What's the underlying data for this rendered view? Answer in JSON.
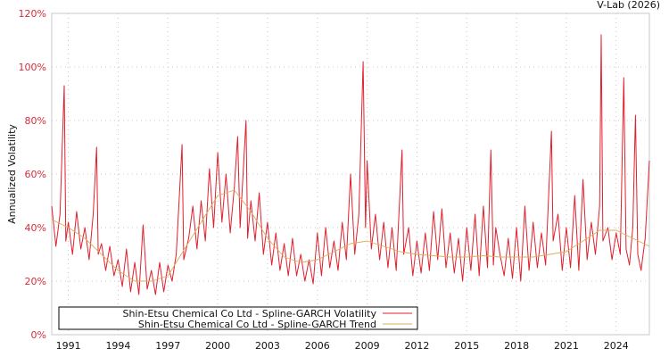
{
  "chart_data": {
    "type": "line",
    "source_label": "V-Lab (2026)",
    "ylabel": "Annualized Volatility",
    "xlabel": "",
    "ylim": [
      0,
      120
    ],
    "xlim": [
      1990.0,
      2026.0
    ],
    "grid": true,
    "legend_position": "bottom-left",
    "y_ticks": [
      "0%",
      "20%",
      "40%",
      "60%",
      "80%",
      "100%",
      "120%"
    ],
    "y_tick_values": [
      0,
      20,
      40,
      60,
      80,
      100,
      120
    ],
    "x_ticks": [
      "1991",
      "1994",
      "1997",
      "2000",
      "2003",
      "2006",
      "2009",
      "2012",
      "2015",
      "2018",
      "2021",
      "2024"
    ],
    "x_tick_values": [
      1991,
      1994,
      1997,
      2000,
      2003,
      2006,
      2009,
      2012,
      2015,
      2018,
      2021,
      2024
    ],
    "series": [
      {
        "name": "Shin-Etsu Chemical Co Ltd - Spline-GARCH Volatility",
        "color": "#e0202e",
        "points": [
          [
            1990.0,
            48
          ],
          [
            1990.25,
            33
          ],
          [
            1990.5,
            45
          ],
          [
            1990.75,
            93
          ],
          [
            1990.85,
            35
          ],
          [
            1991.0,
            42
          ],
          [
            1991.25,
            30
          ],
          [
            1991.5,
            46
          ],
          [
            1991.75,
            32
          ],
          [
            1992.0,
            40
          ],
          [
            1992.25,
            28
          ],
          [
            1992.5,
            45
          ],
          [
            1992.7,
            70
          ],
          [
            1992.8,
            30
          ],
          [
            1993.0,
            34
          ],
          [
            1993.25,
            24
          ],
          [
            1993.5,
            33
          ],
          [
            1993.75,
            22
          ],
          [
            1994.0,
            28
          ],
          [
            1994.25,
            18
          ],
          [
            1994.5,
            32
          ],
          [
            1994.75,
            16
          ],
          [
            1995.0,
            27
          ],
          [
            1995.25,
            15
          ],
          [
            1995.5,
            41
          ],
          [
            1995.75,
            17
          ],
          [
            1996.0,
            24
          ],
          [
            1996.25,
            15
          ],
          [
            1996.5,
            27
          ],
          [
            1996.75,
            16
          ],
          [
            1997.0,
            26
          ],
          [
            1997.25,
            20
          ],
          [
            1997.5,
            30
          ],
          [
            1997.85,
            71
          ],
          [
            1997.95,
            28
          ],
          [
            1998.25,
            36
          ],
          [
            1998.5,
            48
          ],
          [
            1998.75,
            32
          ],
          [
            1999.0,
            50
          ],
          [
            1999.25,
            35
          ],
          [
            1999.5,
            62
          ],
          [
            1999.75,
            40
          ],
          [
            2000.0,
            68
          ],
          [
            2000.25,
            42
          ],
          [
            2000.5,
            60
          ],
          [
            2000.75,
            38
          ],
          [
            2001.0,
            55
          ],
          [
            2001.2,
            74
          ],
          [
            2001.35,
            40
          ],
          [
            2001.7,
            80
          ],
          [
            2001.8,
            36
          ],
          [
            2002.0,
            50
          ],
          [
            2002.25,
            35
          ],
          [
            2002.5,
            53
          ],
          [
            2002.75,
            30
          ],
          [
            2003.0,
            42
          ],
          [
            2003.25,
            26
          ],
          [
            2003.5,
            38
          ],
          [
            2003.75,
            24
          ],
          [
            2004.0,
            34
          ],
          [
            2004.25,
            22
          ],
          [
            2004.5,
            36
          ],
          [
            2004.75,
            22
          ],
          [
            2005.0,
            30
          ],
          [
            2005.25,
            20
          ],
          [
            2005.5,
            28
          ],
          [
            2005.75,
            19
          ],
          [
            2006.0,
            38
          ],
          [
            2006.25,
            22
          ],
          [
            2006.5,
            40
          ],
          [
            2006.75,
            25
          ],
          [
            2007.0,
            35
          ],
          [
            2007.25,
            24
          ],
          [
            2007.5,
            42
          ],
          [
            2007.75,
            28
          ],
          [
            2008.0,
            60
          ],
          [
            2008.25,
            30
          ],
          [
            2008.5,
            45
          ],
          [
            2008.76,
            102
          ],
          [
            2008.9,
            40
          ],
          [
            2009.0,
            65
          ],
          [
            2009.25,
            32
          ],
          [
            2009.5,
            45
          ],
          [
            2009.75,
            28
          ],
          [
            2010.0,
            42
          ],
          [
            2010.25,
            25
          ],
          [
            2010.5,
            40
          ],
          [
            2010.75,
            24
          ],
          [
            2011.1,
            69
          ],
          [
            2011.2,
            30
          ],
          [
            2011.5,
            40
          ],
          [
            2011.75,
            22
          ],
          [
            2012.0,
            35
          ],
          [
            2012.25,
            23
          ],
          [
            2012.5,
            38
          ],
          [
            2012.75,
            24
          ],
          [
            2013.0,
            46
          ],
          [
            2013.25,
            28
          ],
          [
            2013.5,
            47
          ],
          [
            2013.75,
            25
          ],
          [
            2014.0,
            38
          ],
          [
            2014.25,
            23
          ],
          [
            2014.5,
            36
          ],
          [
            2014.75,
            20
          ],
          [
            2015.0,
            40
          ],
          [
            2015.25,
            24
          ],
          [
            2015.5,
            45
          ],
          [
            2015.75,
            22
          ],
          [
            2016.0,
            48
          ],
          [
            2016.25,
            25
          ],
          [
            2016.45,
            69
          ],
          [
            2016.6,
            26
          ],
          [
            2016.75,
            40
          ],
          [
            2017.0,
            30
          ],
          [
            2017.25,
            22
          ],
          [
            2017.5,
            36
          ],
          [
            2017.75,
            21
          ],
          [
            2018.0,
            40
          ],
          [
            2018.25,
            20
          ],
          [
            2018.5,
            48
          ],
          [
            2018.75,
            24
          ],
          [
            2019.0,
            42
          ],
          [
            2019.25,
            25
          ],
          [
            2019.5,
            38
          ],
          [
            2019.75,
            26
          ],
          [
            2020.1,
            76
          ],
          [
            2020.2,
            35
          ],
          [
            2020.5,
            45
          ],
          [
            2020.75,
            24
          ],
          [
            2021.0,
            40
          ],
          [
            2021.25,
            25
          ],
          [
            2021.5,
            52
          ],
          [
            2021.75,
            24
          ],
          [
            2022.0,
            58
          ],
          [
            2022.25,
            28
          ],
          [
            2022.5,
            42
          ],
          [
            2022.75,
            30
          ],
          [
            2023.0,
            48
          ],
          [
            2023.1,
            112
          ],
          [
            2023.2,
            35
          ],
          [
            2023.5,
            40
          ],
          [
            2023.75,
            28
          ],
          [
            2024.0,
            38
          ],
          [
            2024.25,
            30
          ],
          [
            2024.46,
            96
          ],
          [
            2024.6,
            32
          ],
          [
            2024.8,
            26
          ],
          [
            2025.0,
            40
          ],
          [
            2025.16,
            82
          ],
          [
            2025.3,
            30
          ],
          [
            2025.5,
            24
          ],
          [
            2025.75,
            36
          ],
          [
            2026.0,
            65
          ]
        ]
      },
      {
        "name": "Shin-Etsu Chemical Co Ltd - Spline-GARCH Trend",
        "color": "#d4b25a",
        "points": [
          [
            1990,
            43
          ],
          [
            1991,
            40
          ],
          [
            1992,
            36
          ],
          [
            1993,
            30
          ],
          [
            1994,
            24
          ],
          [
            1995,
            20
          ],
          [
            1996,
            20
          ],
          [
            1997,
            22
          ],
          [
            1998,
            32
          ],
          [
            1999,
            42
          ],
          [
            2000,
            52
          ],
          [
            2001,
            54
          ],
          [
            2002,
            46
          ],
          [
            2003,
            36
          ],
          [
            2004,
            29
          ],
          [
            2005,
            27
          ],
          [
            2006,
            28
          ],
          [
            2007,
            31
          ],
          [
            2008,
            34
          ],
          [
            2009,
            35
          ],
          [
            2010,
            33
          ],
          [
            2011,
            31
          ],
          [
            2012,
            30
          ],
          [
            2013,
            29.5
          ],
          [
            2014,
            29
          ],
          [
            2015,
            29
          ],
          [
            2016,
            29.5
          ],
          [
            2017,
            29
          ],
          [
            2018,
            29
          ],
          [
            2019,
            29
          ],
          [
            2020,
            30
          ],
          [
            2021,
            31
          ],
          [
            2022,
            35
          ],
          [
            2023,
            39
          ],
          [
            2024,
            39
          ],
          [
            2025,
            36
          ],
          [
            2026,
            33
          ]
        ]
      }
    ]
  }
}
